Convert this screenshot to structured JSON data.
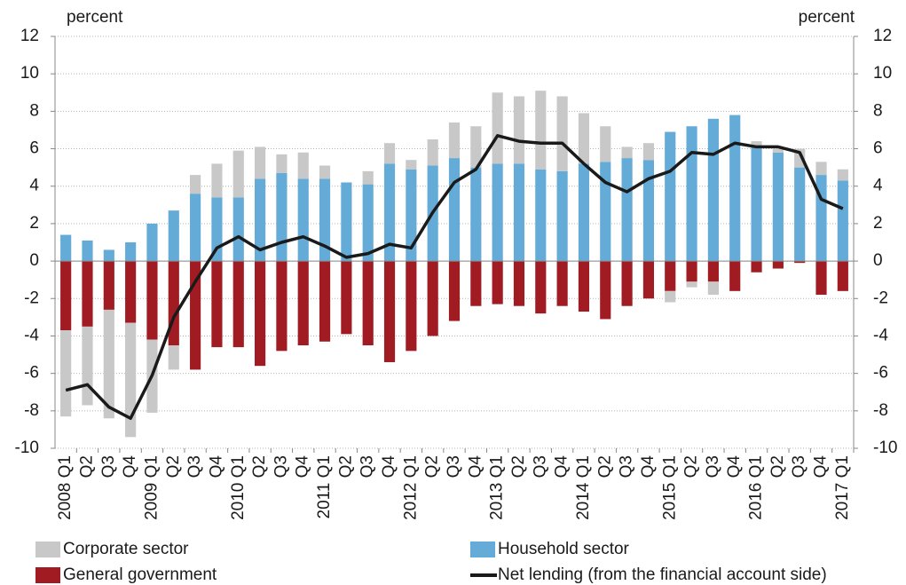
{
  "chart_data": {
    "type": "bar",
    "stacked": true,
    "ylabel": "percent",
    "y2label": "percent",
    "categories": [
      "2008 Q1",
      "Q2",
      "Q3",
      "Q4",
      "2009 Q1",
      "Q2",
      "Q3",
      "Q4",
      "2010 Q1",
      "Q2",
      "Q3",
      "Q4",
      "2011 Q1",
      "Q2",
      "Q3",
      "Q4",
      "2012 Q1",
      "Q2",
      "Q3",
      "Q4",
      "2013 Q1",
      "Q2",
      "Q3",
      "Q4",
      "2014 Q1",
      "Q2",
      "Q3",
      "Q4",
      "2015 Q1",
      "Q2",
      "Q3",
      "Q4",
      "2016 Q1",
      "Q2",
      "Q3",
      "Q4",
      "2017 Q1"
    ],
    "series": [
      {
        "name": "Household sector",
        "color": "#64abd7",
        "values": [
          1.4,
          1.1,
          0.6,
          1.0,
          2.0,
          2.7,
          3.6,
          3.4,
          3.4,
          4.4,
          4.7,
          4.4,
          4.4,
          4.2,
          4.1,
          5.2,
          4.9,
          5.1,
          5.5,
          5.0,
          5.2,
          5.2,
          4.9,
          4.8,
          5.2,
          5.3,
          5.5,
          5.4,
          6.9,
          7.2,
          7.6,
          7.8,
          6.1,
          5.8,
          5.0,
          4.6,
          4.3
        ]
      },
      {
        "name": "General government",
        "color": "#a01c22",
        "values": [
          -3.7,
          -3.5,
          -2.6,
          -3.3,
          -4.2,
          -4.5,
          -5.8,
          -4.6,
          -4.6,
          -5.6,
          -4.8,
          -4.5,
          -4.3,
          -3.9,
          -4.5,
          -5.4,
          -4.8,
          -4.0,
          -3.2,
          -2.4,
          -2.3,
          -2.4,
          -2.8,
          -2.4,
          -2.7,
          -3.1,
          -2.4,
          -2.0,
          -1.6,
          -1.1,
          -1.1,
          -1.6,
          -0.6,
          -0.4,
          -0.1,
          -1.8,
          -1.6
        ]
      },
      {
        "name": "Corporate sector",
        "color": "#c8c8c8",
        "values": [
          -4.6,
          -4.2,
          -5.8,
          -6.1,
          -3.9,
          -1.3,
          1.0,
          1.8,
          2.5,
          1.7,
          1.0,
          1.4,
          0.7,
          0,
          0.7,
          1.1,
          0.5,
          1.4,
          1.9,
          2.2,
          3.8,
          3.6,
          4.2,
          4.0,
          2.7,
          1.9,
          0.6,
          0.9,
          -0.6,
          -0.3,
          -0.7,
          0,
          0.3,
          0.2,
          1.0,
          0.7,
          0.6
        ]
      },
      {
        "name": "Net lending (from the financial account side)",
        "type": "line",
        "color": "#1a1a1a",
        "values": [
          -6.9,
          -6.6,
          -7.8,
          -8.4,
          -6.1,
          -3.0,
          -1.1,
          0.7,
          1.3,
          0.6,
          1.0,
          1.3,
          0.8,
          0.2,
          0.4,
          0.9,
          0.7,
          2.6,
          4.2,
          4.9,
          6.7,
          6.4,
          6.3,
          6.3,
          5.2,
          4.2,
          3.7,
          4.4,
          4.8,
          5.8,
          5.7,
          6.3,
          6.1,
          6.1,
          5.8,
          3.3,
          2.8
        ]
      }
    ],
    "ylim": [
      -10,
      12
    ],
    "yticks": [
      -10,
      -8,
      -6,
      -4,
      -2,
      0,
      2,
      4,
      6,
      8,
      10,
      12
    ],
    "y2lim": [
      -10,
      12
    ],
    "y2ticks": [
      -10,
      -8,
      -6,
      -4,
      -2,
      0,
      2,
      4,
      6,
      8,
      10,
      12
    ],
    "grid": true
  }
}
